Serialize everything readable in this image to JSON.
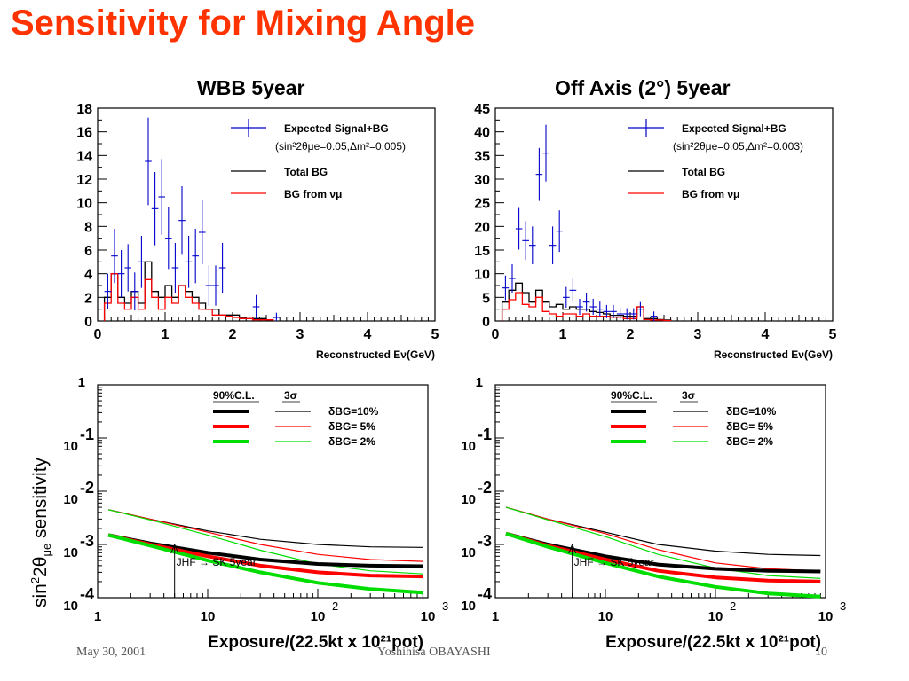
{
  "slide": {
    "title": "Sensitivity for Mixing Angle"
  },
  "ylabel_bottom": {
    "base": "sin",
    "sup": "2",
    "mid": "2θ",
    "sub": "μe",
    "rest": " sensitivity"
  },
  "footer": {
    "left": "May 30, 2001",
    "center": "Yoshihisa OBAYASHI",
    "right": "10"
  },
  "colors": {
    "title": "#ff3300",
    "signal": "#0000cc",
    "red": "#ff0000",
    "green": "#00dd00",
    "black": "#000000"
  },
  "chart_data": [
    {
      "type": "bar",
      "title": "WBB 5year",
      "xlabel": "Reconstructed Eν(GeV)",
      "xlim": [
        0,
        5
      ],
      "ylim": [
        0,
        18
      ],
      "xticks": [
        "0",
        "1",
        "2",
        "3",
        "4",
        "5"
      ],
      "yticks": [
        "0",
        "2",
        "4",
        "6",
        "8",
        "10",
        "12",
        "14",
        "16",
        "18"
      ],
      "legend": {
        "signal": "Expected Signal+BG",
        "params": "(sin²2θμe=0.05,Δm²=0.005)",
        "total": "Total BG",
        "numu": "BG from νμ"
      },
      "bin_width": 0.1,
      "bin_edges_start": 0.1,
      "total_bg": [
        2.0,
        4.0,
        2.0,
        1.5,
        2.5,
        1.5,
        5.0,
        2.5,
        2.0,
        3.0,
        2.0,
        3.0,
        2.5,
        2.0,
        1.5,
        1.0,
        1.0,
        0.5,
        0.5,
        0.5,
        0.3,
        0.2,
        0.2,
        0.2,
        0.1
      ],
      "bg_numu": [
        1.5,
        4.0,
        1.5,
        1.0,
        2.0,
        1.0,
        3.5,
        2.0,
        1.0,
        2.0,
        1.5,
        3.0,
        2.0,
        1.5,
        1.0,
        1.0,
        0.5,
        0.5,
        0.4,
        0.3,
        0.2,
        0.2,
        0.1,
        0.1,
        0.1
      ],
      "signal": [
        {
          "x": 0.15,
          "y": 2.5,
          "e": 1.5
        },
        {
          "x": 0.25,
          "y": 5.5,
          "e": 2.3
        },
        {
          "x": 0.35,
          "y": 4.0,
          "e": 2.0
        },
        {
          "x": 0.45,
          "y": 4.5,
          "e": 2.0
        },
        {
          "x": 0.55,
          "y": 2.5,
          "e": 1.6
        },
        {
          "x": 0.65,
          "y": 5.0,
          "e": 2.2
        },
        {
          "x": 0.75,
          "y": 13.5,
          "e": 3.7
        },
        {
          "x": 0.85,
          "y": 9.5,
          "e": 3.1
        },
        {
          "x": 0.95,
          "y": 10.5,
          "e": 3.2
        },
        {
          "x": 1.05,
          "y": 7.0,
          "e": 2.6
        },
        {
          "x": 1.15,
          "y": 4.5,
          "e": 2.1
        },
        {
          "x": 1.25,
          "y": 8.5,
          "e": 2.9
        },
        {
          "x": 1.35,
          "y": 5.0,
          "e": 2.2
        },
        {
          "x": 1.45,
          "y": 5.5,
          "e": 2.3
        },
        {
          "x": 1.55,
          "y": 7.5,
          "e": 2.7
        },
        {
          "x": 1.65,
          "y": 3.0,
          "e": 1.7
        },
        {
          "x": 1.75,
          "y": 3.0,
          "e": 1.7
        },
        {
          "x": 1.85,
          "y": 4.5,
          "e": 2.1
        },
        {
          "x": 2.35,
          "y": 1.2,
          "e": 1.0
        },
        {
          "x": 2.65,
          "y": 0.3,
          "e": 0.4
        }
      ]
    },
    {
      "type": "bar",
      "title": "Off Axis (2°) 5year",
      "xlabel": "Reconstructed Eν(GeV)",
      "xlim": [
        0,
        5
      ],
      "ylim": [
        0,
        45
      ],
      "xticks": [
        "0",
        "1",
        "2",
        "3",
        "4",
        "5"
      ],
      "yticks": [
        "0",
        "5",
        "10",
        "15",
        "20",
        "25",
        "30",
        "35",
        "40",
        "45"
      ],
      "legend": {
        "signal": "Expected Signal+BG",
        "params": "(sin²2θμe=0.05,Δm²=0.003)",
        "total": "Total BG",
        "numu": "BG from νμ"
      },
      "bin_width": 0.1,
      "bin_edges_start": 0.1,
      "total_bg": [
        4.0,
        6.5,
        8.0,
        6.0,
        4.0,
        6.5,
        4.0,
        3.0,
        3.5,
        2.5,
        3.0,
        2.5,
        2.5,
        2.0,
        1.8,
        1.5,
        1.2,
        1.2,
        1.0,
        1.0,
        3.0,
        0.5,
        0.5,
        0.3,
        0.2
      ],
      "bg_numu": [
        2.5,
        4.5,
        6.0,
        3.5,
        3.0,
        5.0,
        2.0,
        1.5,
        1.0,
        1.5,
        1.5,
        1.0,
        1.5,
        1.0,
        1.0,
        1.0,
        0.8,
        0.8,
        0.5,
        0.5,
        3.0,
        0.3,
        0.2,
        0.2,
        0.1
      ],
      "signal": [
        {
          "x": 0.15,
          "y": 7.0,
          "e": 2.6
        },
        {
          "x": 0.25,
          "y": 9.0,
          "e": 3.0
        },
        {
          "x": 0.35,
          "y": 19.5,
          "e": 4.4
        },
        {
          "x": 0.45,
          "y": 17.0,
          "e": 4.1
        },
        {
          "x": 0.55,
          "y": 16.0,
          "e": 4.0
        },
        {
          "x": 0.65,
          "y": 31.0,
          "e": 5.6
        },
        {
          "x": 0.75,
          "y": 35.5,
          "e": 6.0
        },
        {
          "x": 0.85,
          "y": 16.0,
          "e": 4.0
        },
        {
          "x": 0.95,
          "y": 19.0,
          "e": 4.4
        },
        {
          "x": 1.05,
          "y": 5.0,
          "e": 2.2
        },
        {
          "x": 1.15,
          "y": 6.5,
          "e": 2.5
        },
        {
          "x": 1.25,
          "y": 3.0,
          "e": 1.7
        },
        {
          "x": 1.35,
          "y": 4.0,
          "e": 2.0
        },
        {
          "x": 1.45,
          "y": 3.0,
          "e": 1.7
        },
        {
          "x": 1.55,
          "y": 2.5,
          "e": 1.6
        },
        {
          "x": 1.65,
          "y": 2.0,
          "e": 1.4
        },
        {
          "x": 1.75,
          "y": 2.0,
          "e": 1.4
        },
        {
          "x": 1.85,
          "y": 1.5,
          "e": 1.2
        },
        {
          "x": 1.95,
          "y": 1.5,
          "e": 1.2
        },
        {
          "x": 2.05,
          "y": 1.5,
          "e": 1.2
        },
        {
          "x": 2.15,
          "y": 2.5,
          "e": 1.5
        },
        {
          "x": 2.35,
          "y": 1.0,
          "e": 1.0
        }
      ]
    },
    {
      "type": "line",
      "xlabel": "Exposure/(22.5kt x 10²¹pot)",
      "xscale": "log",
      "yscale": "log",
      "xlim": [
        1,
        1000
      ],
      "ylim": [
        0.0001,
        1
      ],
      "xticks": [
        {
          "base": "1",
          "exp": ""
        },
        {
          "base": "10",
          "exp": ""
        },
        {
          "base": "10",
          "exp": "2"
        },
        {
          "base": "10",
          "exp": "3"
        }
      ],
      "yticks": [
        {
          "base": "1",
          "exp": ""
        },
        {
          "base": "10",
          "exp": "-1"
        },
        {
          "base": "10",
          "exp": "-2"
        },
        {
          "base": "10",
          "exp": "-3"
        },
        {
          "base": "10",
          "exp": "-4"
        }
      ],
      "legend": {
        "cl90": "90%C.L.",
        "sigma3": "3σ",
        "bg10": "δBG=10%",
        "bg5": "δBG= 5%",
        "bg2": "δBG= 2%"
      },
      "annotation": {
        "text": "JHF → SK 5year",
        "x": 5
      },
      "x": [
        1.25,
        3,
        10,
        30,
        100,
        300,
        900
      ],
      "series": [
        {
          "group": "3σ",
          "bg": "10%",
          "color": "#000000",
          "width": 1.2,
          "values": [
            0.0045,
            0.003,
            0.0018,
            0.00125,
            0.001,
            0.0009,
            0.00088
          ]
        },
        {
          "group": "3σ",
          "bg": "5%",
          "color": "#ff0000",
          "width": 1.2,
          "values": [
            0.0045,
            0.003,
            0.0017,
            0.001,
            0.00065,
            0.00052,
            0.00048
          ]
        },
        {
          "group": "3σ",
          "bg": "2%",
          "color": "#00dd00",
          "width": 1.2,
          "values": [
            0.0045,
            0.0029,
            0.0015,
            0.00078,
            0.00043,
            0.00032,
            0.00028
          ]
        },
        {
          "group": "90%C.L.",
          "bg": "10%",
          "color": "#000000",
          "width": 4,
          "values": [
            0.0015,
            0.00105,
            0.0007,
            0.00052,
            0.00043,
            0.0004,
            0.00039
          ]
        },
        {
          "group": "90%C.L.",
          "bg": "5%",
          "color": "#ff0000",
          "width": 4,
          "values": [
            0.0015,
            0.001,
            0.0006,
            0.0004,
            0.0003,
            0.00026,
            0.00025
          ]
        },
        {
          "group": "90%C.L.",
          "bg": "2%",
          "color": "#00dd00",
          "width": 4,
          "values": [
            0.0015,
            0.00095,
            0.0005,
            0.0003,
            0.00019,
            0.000145,
            0.000125
          ]
        }
      ]
    },
    {
      "type": "line",
      "xlabel": "Exposure/(22.5kt x 10²¹pot)",
      "xscale": "log",
      "yscale": "log",
      "xlim": [
        1,
        1000
      ],
      "ylim": [
        0.0001,
        1
      ],
      "xticks": [
        {
          "base": "1",
          "exp": ""
        },
        {
          "base": "10",
          "exp": ""
        },
        {
          "base": "10",
          "exp": "2"
        },
        {
          "base": "10",
          "exp": "3"
        }
      ],
      "yticks": [
        {
          "base": "1",
          "exp": ""
        },
        {
          "base": "10",
          "exp": "-1"
        },
        {
          "base": "10",
          "exp": "-2"
        },
        {
          "base": "10",
          "exp": "-3"
        },
        {
          "base": "10",
          "exp": "-4"
        }
      ],
      "legend": {
        "cl90": "90%C.L.",
        "sigma3": "3σ",
        "bg10": "δBG=10%",
        "bg5": "δBG= 5%",
        "bg2": "δBG= 2%"
      },
      "annotation": {
        "text": "JHF → SK 5year",
        "x": 5
      },
      "x": [
        1.25,
        3,
        10,
        30,
        100,
        300,
        900
      ],
      "series": [
        {
          "group": "3σ",
          "bg": "10%",
          "color": "#000000",
          "width": 1.2,
          "values": [
            0.005,
            0.003,
            0.0017,
            0.001,
            0.00075,
            0.00065,
            0.00062
          ]
        },
        {
          "group": "3σ",
          "bg": "5%",
          "color": "#ff0000",
          "width": 1.2,
          "values": [
            0.005,
            0.003,
            0.0016,
            0.0008,
            0.00045,
            0.00035,
            0.00032
          ]
        },
        {
          "group": "3σ",
          "bg": "2%",
          "color": "#00dd00",
          "width": 1.2,
          "values": [
            0.005,
            0.0029,
            0.0014,
            0.00065,
            0.00036,
            0.00026,
            0.00023
          ]
        },
        {
          "group": "90%C.L.",
          "bg": "10%",
          "color": "#000000",
          "width": 4,
          "values": [
            0.0016,
            0.001,
            0.0006,
            0.00042,
            0.00035,
            0.00032,
            0.00031
          ]
        },
        {
          "group": "90%C.L.",
          "bg": "5%",
          "color": "#ff0000",
          "width": 4,
          "values": [
            0.0016,
            0.00095,
            0.00052,
            0.00032,
            0.00024,
            0.00021,
            0.0002
          ]
        },
        {
          "group": "90%C.L.",
          "bg": "2%",
          "color": "#00dd00",
          "width": 4,
          "values": [
            0.0016,
            0.0009,
            0.00045,
            0.00025,
            0.00016,
            0.00012,
            0.000105
          ]
        }
      ]
    }
  ]
}
